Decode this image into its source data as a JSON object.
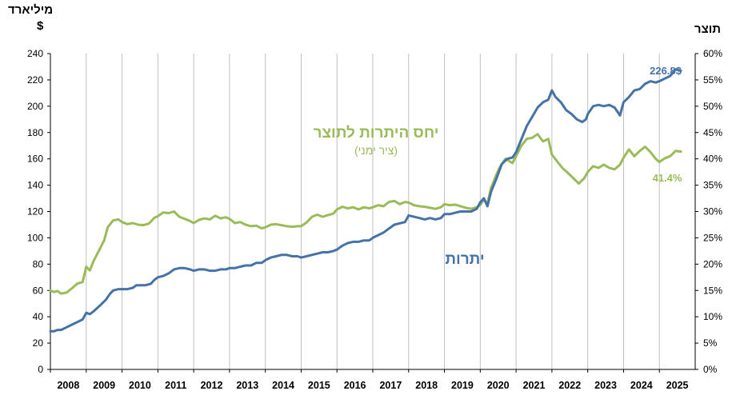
{
  "chart_data": {
    "type": "line",
    "left_axis": {
      "unit_line1": "מיליארד",
      "unit_line2": "$",
      "ylim": [
        0,
        240
      ],
      "ticks": [
        0,
        20,
        40,
        60,
        80,
        100,
        120,
        140,
        160,
        180,
        200,
        220,
        240
      ]
    },
    "right_axis": {
      "unit": "תוצר",
      "ylim": [
        0,
        60
      ],
      "ticks": [
        "0%",
        "5%",
        "10%",
        "15%",
        "20%",
        "25%",
        "30%",
        "35%",
        "40%",
        "45%",
        "50%",
        "55%",
        "60%"
      ]
    },
    "x_years": [
      "2008",
      "2009",
      "2010",
      "2011",
      "2012",
      "2013",
      "2014",
      "2015",
      "2016",
      "2017",
      "2018",
      "2019",
      "2020",
      "2021",
      "2022",
      "2023",
      "2024",
      "2025"
    ],
    "grid": "vertical year separators",
    "series": [
      {
        "name": "יתרות",
        "color": "#4572a7",
        "axis": "left",
        "end_label": "226.8$",
        "points": [
          [
            2008.0,
            29
          ],
          [
            2008.1,
            29
          ],
          [
            2008.2,
            30
          ],
          [
            2008.3,
            30
          ],
          [
            2008.45,
            32
          ],
          [
            2008.6,
            34
          ],
          [
            2008.75,
            36
          ],
          [
            2008.9,
            38
          ],
          [
            2009.0,
            43
          ],
          [
            2009.1,
            42
          ],
          [
            2009.2,
            44
          ],
          [
            2009.4,
            49
          ],
          [
            2009.55,
            53
          ],
          [
            2009.65,
            57
          ],
          [
            2009.75,
            60
          ],
          [
            2009.9,
            61
          ],
          [
            2010.0,
            61
          ],
          [
            2010.15,
            61
          ],
          [
            2010.3,
            62
          ],
          [
            2010.4,
            64
          ],
          [
            2010.5,
            64
          ],
          [
            2010.65,
            64
          ],
          [
            2010.8,
            65
          ],
          [
            2010.9,
            68
          ],
          [
            2011.0,
            70
          ],
          [
            2011.15,
            71
          ],
          [
            2011.3,
            73
          ],
          [
            2011.45,
            76
          ],
          [
            2011.6,
            77
          ],
          [
            2011.75,
            77
          ],
          [
            2011.9,
            76
          ],
          [
            2012.0,
            75
          ],
          [
            2012.15,
            76
          ],
          [
            2012.3,
            76
          ],
          [
            2012.45,
            75
          ],
          [
            2012.6,
            75
          ],
          [
            2012.75,
            76
          ],
          [
            2012.9,
            76
          ],
          [
            2013.0,
            77
          ],
          [
            2013.15,
            77
          ],
          [
            2013.3,
            78
          ],
          [
            2013.45,
            79
          ],
          [
            2013.6,
            79
          ],
          [
            2013.75,
            81
          ],
          [
            2013.9,
            81
          ],
          [
            2014.0,
            83
          ],
          [
            2014.15,
            85
          ],
          [
            2014.3,
            86
          ],
          [
            2014.45,
            87
          ],
          [
            2014.6,
            87
          ],
          [
            2014.75,
            86
          ],
          [
            2014.9,
            86
          ],
          [
            2015.0,
            85
          ],
          [
            2015.15,
            86
          ],
          [
            2015.3,
            87
          ],
          [
            2015.45,
            88
          ],
          [
            2015.6,
            89
          ],
          [
            2015.75,
            89
          ],
          [
            2015.9,
            90
          ],
          [
            2016.0,
            91
          ],
          [
            2016.15,
            94
          ],
          [
            2016.3,
            96
          ],
          [
            2016.45,
            97
          ],
          [
            2016.6,
            97
          ],
          [
            2016.75,
            98
          ],
          [
            2016.9,
            98
          ],
          [
            2017.0,
            100
          ],
          [
            2017.15,
            102
          ],
          [
            2017.3,
            104
          ],
          [
            2017.45,
            107
          ],
          [
            2017.6,
            110
          ],
          [
            2017.75,
            111
          ],
          [
            2017.9,
            112
          ],
          [
            2018.0,
            117
          ],
          [
            2018.15,
            116
          ],
          [
            2018.3,
            115
          ],
          [
            2018.45,
            114
          ],
          [
            2018.6,
            115
          ],
          [
            2018.75,
            114
          ],
          [
            2018.9,
            115
          ],
          [
            2019.0,
            118
          ],
          [
            2019.15,
            118
          ],
          [
            2019.3,
            119
          ],
          [
            2019.45,
            120
          ],
          [
            2019.6,
            120
          ],
          [
            2019.75,
            120
          ],
          [
            2019.9,
            122
          ],
          [
            2020.0,
            127
          ],
          [
            2020.1,
            130
          ],
          [
            2020.2,
            124
          ],
          [
            2020.3,
            135
          ],
          [
            2020.45,
            145
          ],
          [
            2020.6,
            156
          ],
          [
            2020.75,
            160
          ],
          [
            2020.9,
            161
          ],
          [
            2021.0,
            165
          ],
          [
            2021.15,
            175
          ],
          [
            2021.3,
            185
          ],
          [
            2021.45,
            192
          ],
          [
            2021.6,
            199
          ],
          [
            2021.75,
            203
          ],
          [
            2021.9,
            205
          ],
          [
            2022.0,
            212
          ],
          [
            2022.1,
            207
          ],
          [
            2022.25,
            203
          ],
          [
            2022.4,
            197
          ],
          [
            2022.55,
            194
          ],
          [
            2022.7,
            190
          ],
          [
            2022.85,
            188
          ],
          [
            2022.95,
            190
          ],
          [
            2023.0,
            194
          ],
          [
            2023.15,
            200
          ],
          [
            2023.3,
            201
          ],
          [
            2023.45,
            200
          ],
          [
            2023.6,
            201
          ],
          [
            2023.75,
            199
          ],
          [
            2023.9,
            193
          ],
          [
            2024.0,
            203
          ],
          [
            2024.15,
            207
          ],
          [
            2024.3,
            212
          ],
          [
            2024.45,
            213
          ],
          [
            2024.6,
            217
          ],
          [
            2024.75,
            219
          ],
          [
            2024.9,
            218
          ],
          [
            2025.0,
            219
          ],
          [
            2025.15,
            221
          ],
          [
            2025.3,
            223
          ],
          [
            2025.45,
            228
          ],
          [
            2025.6,
            227
          ]
        ]
      },
      {
        "name": "יחס היתרות לתוצר",
        "name_note": "(ציר ימני)",
        "color": "#9bbb59",
        "axis": "right",
        "end_label": "41.4%",
        "points": [
          [
            2008.0,
            15.0
          ],
          [
            2008.1,
            14.7
          ],
          [
            2008.2,
            14.9
          ],
          [
            2008.3,
            14.4
          ],
          [
            2008.45,
            14.6
          ],
          [
            2008.6,
            15.4
          ],
          [
            2008.75,
            16.3
          ],
          [
            2008.9,
            16.6
          ],
          [
            2009.0,
            19.5
          ],
          [
            2009.1,
            18.8
          ],
          [
            2009.2,
            20.5
          ],
          [
            2009.35,
            22.5
          ],
          [
            2009.5,
            24.5
          ],
          [
            2009.6,
            27.0
          ],
          [
            2009.75,
            28.3
          ],
          [
            2009.9,
            28.5
          ],
          [
            2010.0,
            28.0
          ],
          [
            2010.15,
            27.6
          ],
          [
            2010.3,
            27.8
          ],
          [
            2010.45,
            27.5
          ],
          [
            2010.6,
            27.4
          ],
          [
            2010.75,
            27.7
          ],
          [
            2010.9,
            28.8
          ],
          [
            2011.0,
            29.1
          ],
          [
            2011.15,
            29.8
          ],
          [
            2011.3,
            29.7
          ],
          [
            2011.45,
            30.0
          ],
          [
            2011.6,
            29.0
          ],
          [
            2011.75,
            28.6
          ],
          [
            2011.9,
            28.2
          ],
          [
            2012.0,
            27.8
          ],
          [
            2012.15,
            28.4
          ],
          [
            2012.3,
            28.7
          ],
          [
            2012.45,
            28.5
          ],
          [
            2012.6,
            29.2
          ],
          [
            2012.75,
            28.7
          ],
          [
            2012.9,
            28.9
          ],
          [
            2013.0,
            28.6
          ],
          [
            2013.15,
            27.8
          ],
          [
            2013.3,
            28.0
          ],
          [
            2013.45,
            27.5
          ],
          [
            2013.6,
            27.2
          ],
          [
            2013.75,
            27.3
          ],
          [
            2013.9,
            26.8
          ],
          [
            2014.0,
            27.0
          ],
          [
            2014.15,
            27.5
          ],
          [
            2014.3,
            27.6
          ],
          [
            2014.45,
            27.4
          ],
          [
            2014.6,
            27.2
          ],
          [
            2014.75,
            27.1
          ],
          [
            2014.9,
            27.2
          ],
          [
            2015.0,
            27.2
          ],
          [
            2015.15,
            27.9
          ],
          [
            2015.3,
            29.0
          ],
          [
            2015.45,
            29.4
          ],
          [
            2015.6,
            29.0
          ],
          [
            2015.75,
            29.3
          ],
          [
            2015.9,
            29.6
          ],
          [
            2016.0,
            30.4
          ],
          [
            2016.15,
            30.9
          ],
          [
            2016.3,
            30.6
          ],
          [
            2016.45,
            30.8
          ],
          [
            2016.6,
            30.4
          ],
          [
            2016.75,
            30.8
          ],
          [
            2016.9,
            30.6
          ],
          [
            2017.0,
            30.8
          ],
          [
            2017.15,
            31.2
          ],
          [
            2017.3,
            31.0
          ],
          [
            2017.45,
            31.8
          ],
          [
            2017.6,
            32.0
          ],
          [
            2017.75,
            31.4
          ],
          [
            2017.9,
            31.8
          ],
          [
            2018.0,
            31.7
          ],
          [
            2018.15,
            31.2
          ],
          [
            2018.3,
            31.0
          ],
          [
            2018.45,
            30.9
          ],
          [
            2018.6,
            30.7
          ],
          [
            2018.75,
            30.5
          ],
          [
            2018.9,
            30.8
          ],
          [
            2019.0,
            31.4
          ],
          [
            2019.15,
            31.2
          ],
          [
            2019.3,
            31.3
          ],
          [
            2019.45,
            31.0
          ],
          [
            2019.6,
            30.7
          ],
          [
            2019.75,
            30.5
          ],
          [
            2019.9,
            30.8
          ],
          [
            2020.0,
            31.2
          ],
          [
            2020.1,
            32.3
          ],
          [
            2020.2,
            31.5
          ],
          [
            2020.3,
            34.5
          ],
          [
            2020.45,
            37.0
          ],
          [
            2020.55,
            38.5
          ],
          [
            2020.7,
            40.0
          ],
          [
            2020.9,
            39.2
          ],
          [
            2021.0,
            40.5
          ],
          [
            2021.15,
            42.5
          ],
          [
            2021.3,
            43.8
          ],
          [
            2021.45,
            44.0
          ],
          [
            2021.6,
            44.7
          ],
          [
            2021.75,
            43.3
          ],
          [
            2021.9,
            43.8
          ],
          [
            2022.0,
            40.8
          ],
          [
            2022.15,
            39.5
          ],
          [
            2022.3,
            38.2
          ],
          [
            2022.45,
            37.3
          ],
          [
            2022.6,
            36.3
          ],
          [
            2022.75,
            35.3
          ],
          [
            2022.9,
            36.3
          ],
          [
            2023.0,
            37.5
          ],
          [
            2023.15,
            38.6
          ],
          [
            2023.3,
            38.3
          ],
          [
            2023.45,
            38.9
          ],
          [
            2023.6,
            38.3
          ],
          [
            2023.75,
            38.0
          ],
          [
            2023.9,
            38.9
          ],
          [
            2024.0,
            40.2
          ],
          [
            2024.15,
            41.8
          ],
          [
            2024.3,
            40.5
          ],
          [
            2024.45,
            41.5
          ],
          [
            2024.6,
            42.3
          ],
          [
            2024.75,
            41.3
          ],
          [
            2024.9,
            40.0
          ],
          [
            2025.0,
            39.4
          ],
          [
            2025.15,
            40.1
          ],
          [
            2025.3,
            40.5
          ],
          [
            2025.45,
            41.5
          ],
          [
            2025.6,
            41.4
          ]
        ]
      }
    ]
  }
}
